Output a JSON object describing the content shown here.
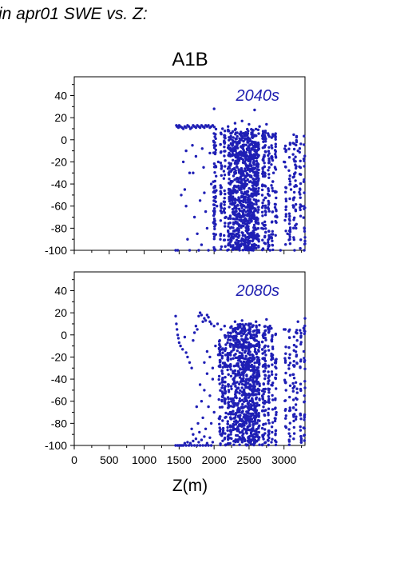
{
  "page_title": "in apr01 SWE vs. Z:",
  "chart_data": [
    {
      "type": "scatter",
      "title": "A1B",
      "annotation": "2040s",
      "xlabel": "",
      "ylabel": "",
      "xlim": [
        0,
        3300
      ],
      "ylim": [
        -100,
        57
      ],
      "xticks": [],
      "yticks": [
        40,
        20,
        0,
        -20,
        -40,
        -60,
        -80,
        -100
      ],
      "marker_color": "#1f1fb5",
      "annotation_color": "#2020b0",
      "grid": false,
      "min_elevation": 1450,
      "points": [
        [
          1450,
          -100
        ],
        [
          1480,
          -100
        ],
        [
          1460,
          13
        ],
        [
          1470,
          12
        ],
        [
          1490,
          11
        ],
        [
          1500,
          13
        ],
        [
          1520,
          12
        ],
        [
          1540,
          11
        ],
        [
          1560,
          10
        ],
        [
          1580,
          12
        ],
        [
          1600,
          11
        ],
        [
          1620,
          13
        ],
        [
          1640,
          12
        ],
        [
          1660,
          10
        ],
        [
          1680,
          11
        ],
        [
          1700,
          13
        ],
        [
          1720,
          12
        ],
        [
          1740,
          11
        ],
        [
          1760,
          13
        ],
        [
          1780,
          12
        ],
        [
          1800,
          11
        ],
        [
          1820,
          13
        ],
        [
          1840,
          12
        ],
        [
          1860,
          11
        ],
        [
          1880,
          13
        ],
        [
          1900,
          12
        ],
        [
          1920,
          13
        ],
        [
          1940,
          11
        ],
        [
          1960,
          12
        ],
        [
          1980,
          13
        ],
        [
          2000,
          28
        ],
        [
          2120,
          10
        ],
        [
          2200,
          12
        ],
        [
          2300,
          15
        ],
        [
          2400,
          17
        ],
        [
          2500,
          14
        ],
        [
          2580,
          27
        ],
        [
          2650,
          12
        ],
        [
          2750,
          14
        ],
        [
          1560,
          -20
        ],
        [
          1580,
          -45
        ],
        [
          1600,
          -60
        ],
        [
          1620,
          -90
        ],
        [
          1650,
          -100
        ],
        [
          1700,
          -30
        ],
        [
          1720,
          -70
        ],
        [
          1760,
          -85
        ],
        [
          1780,
          -100
        ],
        [
          1800,
          -55
        ],
        [
          1820,
          -95
        ],
        [
          1850,
          -25
        ],
        [
          1880,
          -65
        ],
        [
          1900,
          -80
        ],
        [
          1920,
          -100
        ],
        [
          1960,
          -40
        ],
        [
          1990,
          -75
        ],
        [
          2010,
          -100
        ],
        [
          1530,
          -50
        ],
        [
          1600,
          -10
        ],
        [
          1650,
          -30
        ],
        [
          1690,
          -5
        ],
        [
          1740,
          -15
        ],
        [
          1830,
          -8
        ],
        [
          1860,
          -48
        ],
        [
          1940,
          -12
        ],
        [
          2040,
          -60
        ],
        [
          2060,
          -20
        ],
        [
          2090,
          -90
        ],
        [
          2140,
          -35
        ],
        [
          2170,
          -70
        ],
        [
          2190,
          -100
        ],
        [
          2230,
          -45
        ],
        [
          2260,
          -85
        ],
        [
          2330,
          -5
        ],
        [
          2360,
          -55
        ],
        [
          2420,
          -95
        ],
        [
          2470,
          -25
        ],
        [
          2530,
          -65
        ],
        [
          2560,
          -100
        ],
        [
          2600,
          -40
        ],
        [
          2680,
          -80
        ],
        [
          2720,
          -15
        ],
        [
          2780,
          -50
        ],
        [
          2800,
          -100
        ],
        [
          2850,
          -30
        ],
        [
          2900,
          -70
        ],
        [
          2950,
          -100
        ],
        [
          3000,
          -20
        ],
        [
          3050,
          -85
        ],
        [
          3100,
          -45
        ],
        [
          3150,
          -100
        ],
        [
          3200,
          -10
        ],
        [
          3250,
          -60
        ],
        [
          3290,
          -100
        ]
      ],
      "columns": [
        {
          "x": 2000,
          "y0": -100,
          "y1": 12,
          "n": 40
        },
        {
          "x": 2020,
          "y0": -100,
          "y1": 10,
          "n": 30
        },
        {
          "x": 2100,
          "y0": -100,
          "y1": 8,
          "n": 30
        },
        {
          "x": 2150,
          "y0": -100,
          "y1": 9,
          "n": 35
        },
        {
          "x": 2210,
          "y0": -100,
          "y1": 10,
          "n": 45
        },
        {
          "x": 2240,
          "y0": -100,
          "y1": 10,
          "n": 45
        },
        {
          "x": 2270,
          "y0": -100,
          "y1": 10,
          "n": 50
        },
        {
          "x": 2300,
          "y0": -100,
          "y1": 10,
          "n": 55
        },
        {
          "x": 2330,
          "y0": -100,
          "y1": 10,
          "n": 55
        },
        {
          "x": 2360,
          "y0": -100,
          "y1": 10,
          "n": 60
        },
        {
          "x": 2390,
          "y0": -100,
          "y1": 10,
          "n": 60
        },
        {
          "x": 2420,
          "y0": -100,
          "y1": 10,
          "n": 65
        },
        {
          "x": 2450,
          "y0": -100,
          "y1": 10,
          "n": 65
        },
        {
          "x": 2480,
          "y0": -100,
          "y1": 10,
          "n": 70
        },
        {
          "x": 2510,
          "y0": -100,
          "y1": 10,
          "n": 70
        },
        {
          "x": 2540,
          "y0": -100,
          "y1": 10,
          "n": 70
        },
        {
          "x": 2570,
          "y0": -100,
          "y1": 10,
          "n": 70
        },
        {
          "x": 2600,
          "y0": -100,
          "y1": 10,
          "n": 65
        },
        {
          "x": 2630,
          "y0": -100,
          "y1": 10,
          "n": 55
        },
        {
          "x": 2700,
          "y0": -100,
          "y1": 8,
          "n": 40
        },
        {
          "x": 2730,
          "y0": -100,
          "y1": 8,
          "n": 40
        },
        {
          "x": 2780,
          "y0": -100,
          "y1": 8,
          "n": 40
        },
        {
          "x": 2830,
          "y0": -100,
          "y1": 6,
          "n": 30
        },
        {
          "x": 2880,
          "y0": -100,
          "y1": 6,
          "n": 30
        },
        {
          "x": 3020,
          "y0": -95,
          "y1": 6,
          "n": 20
        },
        {
          "x": 3080,
          "y0": -100,
          "y1": 7,
          "n": 25
        },
        {
          "x": 3140,
          "y0": -100,
          "y1": 7,
          "n": 25
        },
        {
          "x": 3170,
          "y0": -90,
          "y1": 6,
          "n": 20
        },
        {
          "x": 3230,
          "y0": -100,
          "y1": 6,
          "n": 20
        },
        {
          "x": 3290,
          "y0": -100,
          "y1": 8,
          "n": 20
        }
      ]
    },
    {
      "type": "scatter",
      "title": "",
      "annotation": "2080s",
      "xlabel": "Z(m)",
      "ylabel": "",
      "xlim": [
        0,
        3300
      ],
      "ylim": [
        -100,
        57
      ],
      "xticks": [
        0,
        500,
        1000,
        1500,
        2000,
        2500,
        3000
      ],
      "yticks": [
        40,
        20,
        0,
        -20,
        -40,
        -60,
        -80,
        -100
      ],
      "marker_color": "#1f1fb5",
      "annotation_color": "#2020b0",
      "grid": false,
      "min_elevation": 1450,
      "points": [
        [
          1450,
          17
        ],
        [
          1460,
          10
        ],
        [
          1470,
          5
        ],
        [
          1480,
          0
        ],
        [
          1490,
          -3
        ],
        [
          1500,
          -7
        ],
        [
          1520,
          -10
        ],
        [
          1550,
          -13
        ],
        [
          1580,
          -2
        ],
        [
          1600,
          -16
        ],
        [
          1620,
          -20
        ],
        [
          1650,
          -25
        ],
        [
          1680,
          -30
        ],
        [
          1700,
          -5
        ],
        [
          1720,
          2
        ],
        [
          1740,
          8
        ],
        [
          1760,
          5
        ],
        [
          1780,
          17
        ],
        [
          1800,
          20
        ],
        [
          1820,
          18
        ],
        [
          1840,
          12
        ],
        [
          1860,
          15
        ],
        [
          1880,
          13
        ],
        [
          1900,
          18
        ],
        [
          1920,
          16
        ],
        [
          1940,
          12
        ],
        [
          1960,
          10
        ],
        [
          2000,
          8
        ],
        [
          2050,
          10
        ],
        [
          2100,
          5
        ],
        [
          2150,
          8
        ],
        [
          2300,
          12
        ],
        [
          2400,
          13
        ],
        [
          2500,
          10
        ],
        [
          2600,
          12
        ],
        [
          2750,
          14
        ],
        [
          2800,
          8
        ],
        [
          3000,
          5
        ],
        [
          3200,
          12
        ],
        [
          3300,
          15
        ],
        [
          1450,
          -100
        ],
        [
          1480,
          -100
        ],
        [
          1500,
          -100
        ],
        [
          1520,
          -100
        ],
        [
          1540,
          -100
        ],
        [
          1560,
          -100
        ],
        [
          1580,
          -98
        ],
        [
          1600,
          -100
        ],
        [
          1620,
          -97
        ],
        [
          1640,
          -100
        ],
        [
          1660,
          -98
        ],
        [
          1680,
          -100
        ],
        [
          1700,
          -96
        ],
        [
          1720,
          -100
        ],
        [
          1740,
          -94
        ],
        [
          1760,
          -100
        ],
        [
          1780,
          -97
        ],
        [
          1800,
          -100
        ],
        [
          1820,
          -95
        ],
        [
          1840,
          -100
        ],
        [
          1860,
          -92
        ],
        [
          1880,
          -100
        ],
        [
          1900,
          -98
        ],
        [
          1920,
          -100
        ],
        [
          1940,
          -93
        ],
        [
          1960,
          -100
        ],
        [
          1980,
          -97
        ],
        [
          1800,
          -45
        ],
        [
          1820,
          -60
        ],
        [
          1840,
          -75
        ],
        [
          1860,
          -50
        ],
        [
          1880,
          -85
        ],
        [
          1900,
          -35
        ],
        [
          1920,
          -65
        ],
        [
          1940,
          -55
        ],
        [
          1960,
          -80
        ],
        [
          1980,
          -40
        ],
        [
          2000,
          -70
        ],
        [
          1750,
          -65
        ],
        [
          1770,
          -80
        ],
        [
          1790,
          -88
        ],
        [
          1700,
          -90
        ],
        [
          1680,
          -85
        ],
        [
          1860,
          -25
        ],
        [
          1900,
          -15
        ],
        [
          1940,
          -20
        ],
        [
          1980,
          -30
        ],
        [
          2020,
          -10
        ],
        [
          2060,
          -18
        ],
        [
          2080,
          -5
        ],
        [
          2120,
          -35
        ]
      ],
      "columns": [
        {
          "x": 2080,
          "y0": -100,
          "y1": -5,
          "n": 35
        },
        {
          "x": 2120,
          "y0": -100,
          "y1": -10,
          "n": 35
        },
        {
          "x": 2160,
          "y0": -100,
          "y1": 0,
          "n": 40
        },
        {
          "x": 2200,
          "y0": -100,
          "y1": 5,
          "n": 45
        },
        {
          "x": 2240,
          "y0": -100,
          "y1": 8,
          "n": 45
        },
        {
          "x": 2280,
          "y0": -100,
          "y1": 10,
          "n": 50
        },
        {
          "x": 2310,
          "y0": -100,
          "y1": 10,
          "n": 50
        },
        {
          "x": 2340,
          "y0": -100,
          "y1": 10,
          "n": 55
        },
        {
          "x": 2370,
          "y0": -100,
          "y1": 10,
          "n": 55
        },
        {
          "x": 2400,
          "y0": -100,
          "y1": 10,
          "n": 60
        },
        {
          "x": 2430,
          "y0": -100,
          "y1": 10,
          "n": 60
        },
        {
          "x": 2460,
          "y0": -100,
          "y1": 10,
          "n": 65
        },
        {
          "x": 2490,
          "y0": -100,
          "y1": 10,
          "n": 65
        },
        {
          "x": 2520,
          "y0": -100,
          "y1": 10,
          "n": 65
        },
        {
          "x": 2550,
          "y0": -100,
          "y1": 10,
          "n": 65
        },
        {
          "x": 2580,
          "y0": -100,
          "y1": 10,
          "n": 65
        },
        {
          "x": 2610,
          "y0": -100,
          "y1": 10,
          "n": 60
        },
        {
          "x": 2640,
          "y0": -100,
          "y1": 10,
          "n": 50
        },
        {
          "x": 2700,
          "y0": -100,
          "y1": 8,
          "n": 40
        },
        {
          "x": 2730,
          "y0": -100,
          "y1": 8,
          "n": 40
        },
        {
          "x": 2780,
          "y0": -100,
          "y1": 10,
          "n": 40
        },
        {
          "x": 2830,
          "y0": -100,
          "y1": 6,
          "n": 30
        },
        {
          "x": 2880,
          "y0": -100,
          "y1": 6,
          "n": 30
        },
        {
          "x": 3020,
          "y0": -95,
          "y1": 5,
          "n": 20
        },
        {
          "x": 3080,
          "y0": -100,
          "y1": 5,
          "n": 25
        },
        {
          "x": 3140,
          "y0": -100,
          "y1": 8,
          "n": 25
        },
        {
          "x": 3180,
          "y0": -90,
          "y1": 5,
          "n": 20
        },
        {
          "x": 3240,
          "y0": -100,
          "y1": 10,
          "n": 25
        },
        {
          "x": 3290,
          "y0": -100,
          "y1": 15,
          "n": 25
        }
      ]
    }
  ]
}
